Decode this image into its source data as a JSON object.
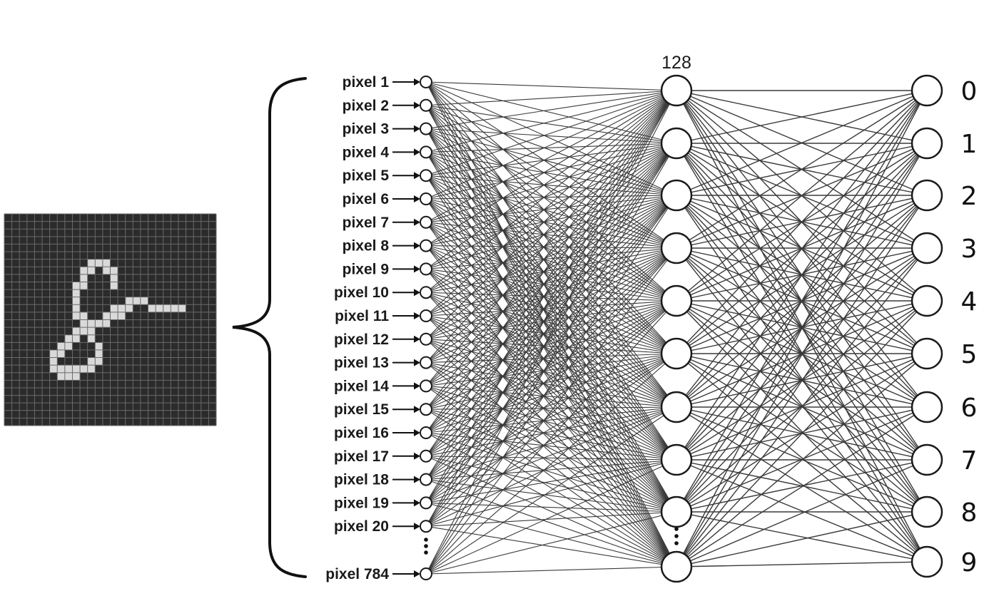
{
  "input_labels": [
    "pixel 1",
    "pixel 2",
    "pixel 3",
    "pixel 4",
    "pixel 5",
    "pixel 6",
    "pixel 7",
    "pixel 8",
    "pixel 9",
    "pixel 10",
    "pixel 11",
    "pixel 12",
    "pixel 13",
    "pixel 14",
    "pixel 15",
    "pixel 16",
    "pixel 17",
    "pixel 18",
    "pixel 19",
    "pixel 20",
    "pixel 784"
  ],
  "hidden_layer_size": "128",
  "output_labels": [
    "0",
    "1",
    "2",
    "3",
    "4",
    "5",
    "6",
    "7",
    "8",
    "9"
  ],
  "colors": {
    "image_background": "#2b2b2b",
    "image_grid": "#6a6a6a",
    "digit_stroke": "#d9d9d9",
    "connection": "#3a3a3a",
    "node_stroke": "#1a1a1a"
  },
  "digit_pixels": [
    [
      6,
      11
    ],
    [
      6,
      12
    ],
    [
      6,
      13
    ],
    [
      7,
      10
    ],
    [
      7,
      11
    ],
    [
      7,
      13
    ],
    [
      7,
      14
    ],
    [
      8,
      10
    ],
    [
      8,
      14
    ],
    [
      9,
      9
    ],
    [
      9,
      10
    ],
    [
      9,
      14
    ],
    [
      10,
      9
    ],
    [
      11,
      9
    ],
    [
      11,
      16
    ],
    [
      11,
      17
    ],
    [
      11,
      18
    ],
    [
      12,
      9
    ],
    [
      12,
      14
    ],
    [
      12,
      15
    ],
    [
      12,
      16
    ],
    [
      12,
      19
    ],
    [
      12,
      20
    ],
    [
      12,
      21
    ],
    [
      12,
      22
    ],
    [
      12,
      23
    ],
    [
      13,
      9
    ],
    [
      13,
      10
    ],
    [
      13,
      13
    ],
    [
      13,
      14
    ],
    [
      13,
      15
    ],
    [
      14,
      10
    ],
    [
      14,
      11
    ],
    [
      14,
      12
    ],
    [
      14,
      13
    ],
    [
      15,
      9
    ],
    [
      15,
      10
    ],
    [
      15,
      11
    ],
    [
      16,
      8
    ],
    [
      16,
      9
    ],
    [
      16,
      11
    ],
    [
      17,
      7
    ],
    [
      17,
      8
    ],
    [
      17,
      12
    ],
    [
      18,
      6
    ],
    [
      18,
      7
    ],
    [
      18,
      12
    ],
    [
      19,
      6
    ],
    [
      19,
      11
    ],
    [
      19,
      12
    ],
    [
      20,
      6
    ],
    [
      20,
      7
    ],
    [
      20,
      8
    ],
    [
      20,
      9
    ],
    [
      20,
      10
    ],
    [
      20,
      11
    ],
    [
      21,
      7
    ],
    [
      21,
      8
    ],
    [
      21,
      9
    ]
  ]
}
